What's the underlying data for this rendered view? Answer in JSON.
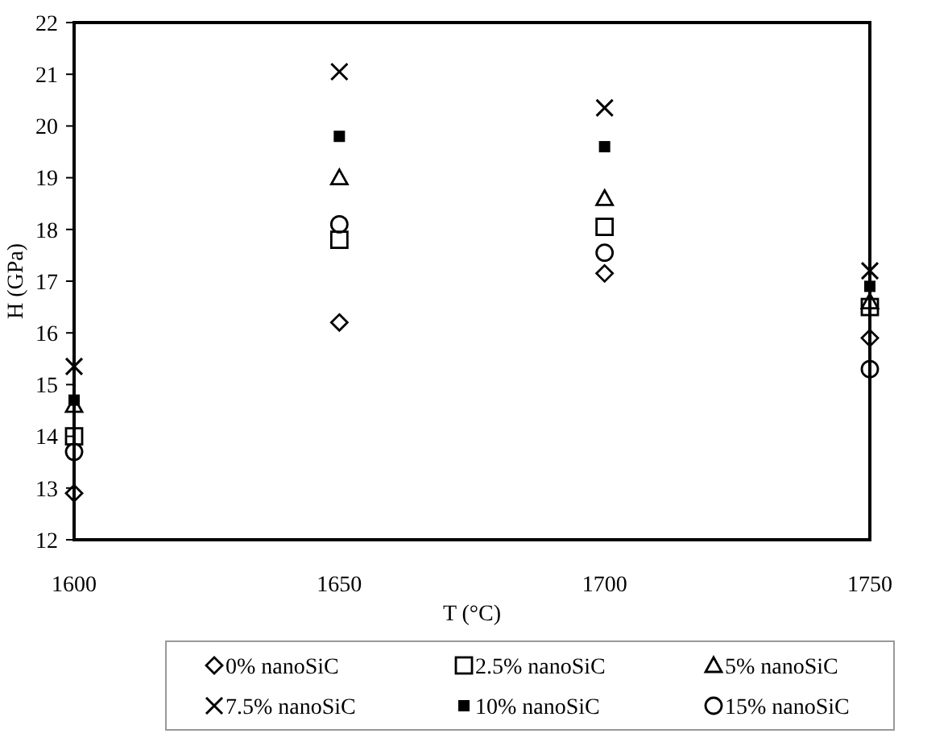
{
  "chart_data": {
    "type": "scatter",
    "xlabel": "T (°C)",
    "ylabel": "H (GPa)",
    "x": [
      1600,
      1650,
      1700,
      1750
    ],
    "xlim": [
      1600,
      1750
    ],
    "xticks": [
      1600,
      1650,
      1700,
      1750
    ],
    "ylim": [
      12,
      22
    ],
    "yticks": [
      12,
      13,
      14,
      15,
      16,
      17,
      18,
      19,
      20,
      21,
      22
    ],
    "grid": false,
    "legend": "bottom",
    "series": [
      {
        "name": "0% nanoSiC",
        "color": "#000000",
        "marker": "diamond",
        "values": [
          12.9,
          16.2,
          17.15,
          15.9
        ]
      },
      {
        "name": "2.5% nanoSiC",
        "color": "#000000",
        "marker": "square",
        "values": [
          14.0,
          17.8,
          18.05,
          16.5
        ]
      },
      {
        "name": "5% nanoSiC",
        "color": "#000000",
        "marker": "triangle",
        "values": [
          14.6,
          19.0,
          18.6,
          16.6
        ]
      },
      {
        "name": "7.5% nanoSiC",
        "color": "#000000",
        "marker": "cross",
        "values": [
          15.35,
          21.05,
          20.35,
          17.2
        ]
      },
      {
        "name": "10% nanoSiC",
        "color": "#000000",
        "marker": "square-filled",
        "values": [
          14.7,
          19.8,
          19.6,
          16.9
        ]
      },
      {
        "name": "15% nanoSiC",
        "color": "#000000",
        "marker": "circle",
        "values": [
          13.7,
          18.1,
          17.55,
          15.3
        ]
      }
    ]
  }
}
